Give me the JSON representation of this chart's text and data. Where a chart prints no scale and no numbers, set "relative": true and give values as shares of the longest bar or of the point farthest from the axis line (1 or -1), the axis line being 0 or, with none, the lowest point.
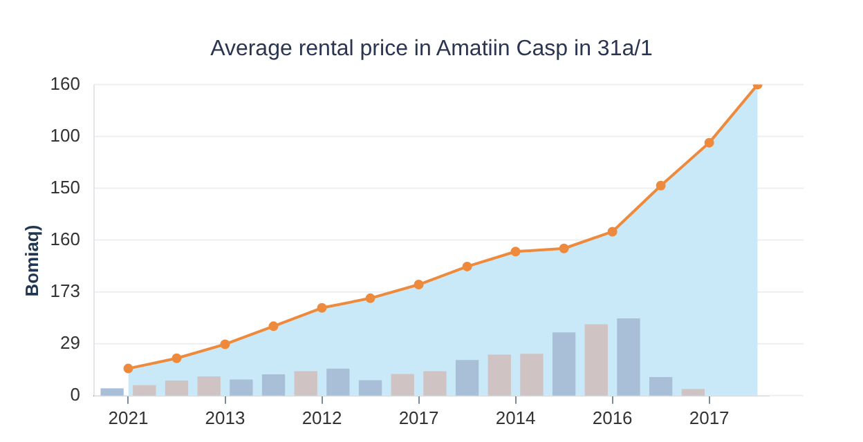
{
  "chart_data": {
    "type": "line",
    "title": "Average rental price in Amatiin Casp in 31a/1",
    "ylabel": "Bomiaq)",
    "relative": true,
    "categories": [
      null,
      "2021",
      null,
      null,
      null,
      null,
      null,
      "2013",
      null,
      null,
      null,
      null,
      null,
      "2012",
      null,
      null,
      null,
      null,
      null,
      "2017",
      null,
      null,
      null,
      null,
      null,
      "2014",
      null,
      null,
      null,
      null,
      null,
      "2016",
      null,
      null,
      null,
      null,
      null,
      "2017",
      null,
      null,
      null
    ],
    "annotations": [
      "160",
      "100",
      "150",
      "160",
      "173",
      "29",
      "0"
    ],
    "grid": "y",
    "legend": false,
    "series": [
      {
        "type": "area",
        "color": "#c9e9f8",
        "values": [
          null,
          0.087,
          null,
          null,
          0.12,
          null,
          null,
          0.165,
          null,
          null,
          0.223,
          null,
          null,
          0.282,
          null,
          null,
          0.313,
          null,
          null,
          0.357,
          null,
          null,
          0.415,
          null,
          null,
          0.463,
          null,
          null,
          0.473,
          null,
          null,
          0.527,
          null,
          null,
          0.675,
          null,
          null,
          0.813,
          null,
          null,
          1
        ]
      },
      {
        "type": "bar",
        "values": [
          0.022,
          null,
          0.032,
          null,
          0.047,
          null,
          0.06,
          null,
          0.05,
          null,
          0.067,
          null,
          0.077,
          null,
          0.085,
          null,
          0.048,
          null,
          0.068,
          null,
          0.077,
          null,
          0.113,
          null,
          0.13,
          null,
          0.133,
          null,
          0.202,
          null,
          0.228,
          null,
          0.247,
          null,
          0.058,
          null,
          0.02,
          null,
          null,
          null,
          null
        ],
        "colors": [
          "#a9bfd8",
          null,
          "#cfc3c3",
          null,
          "#cfc3c3",
          null,
          "#cfc3c3",
          null,
          "#a9bfd8",
          null,
          "#a9bfd8",
          null,
          "#cfc3c3",
          null,
          "#a9bfd8",
          null,
          "#a9bfd8",
          null,
          "#cfc3c3",
          null,
          "#cfc3c3",
          null,
          "#a9bfd8",
          null,
          "#cfc3c3",
          null,
          "#cfc3c3",
          null,
          "#a9bfd8",
          null,
          "#cfc3c3",
          null,
          "#a9bfd8",
          null,
          "#a9bfd8",
          null,
          "#cfc3c3",
          null,
          null,
          null,
          null
        ]
      },
      {
        "color": "#ee8a3c",
        "marker": "circle",
        "values": [
          null,
          0.087,
          null,
          null,
          0.12,
          null,
          null,
          0.165,
          null,
          null,
          0.223,
          null,
          null,
          0.282,
          null,
          null,
          0.313,
          null,
          null,
          0.357,
          null,
          null,
          0.415,
          null,
          null,
          0.463,
          null,
          null,
          0.473,
          null,
          null,
          0.527,
          null,
          null,
          0.675,
          null,
          null,
          0.813,
          null,
          null,
          1
        ]
      }
    ]
  }
}
